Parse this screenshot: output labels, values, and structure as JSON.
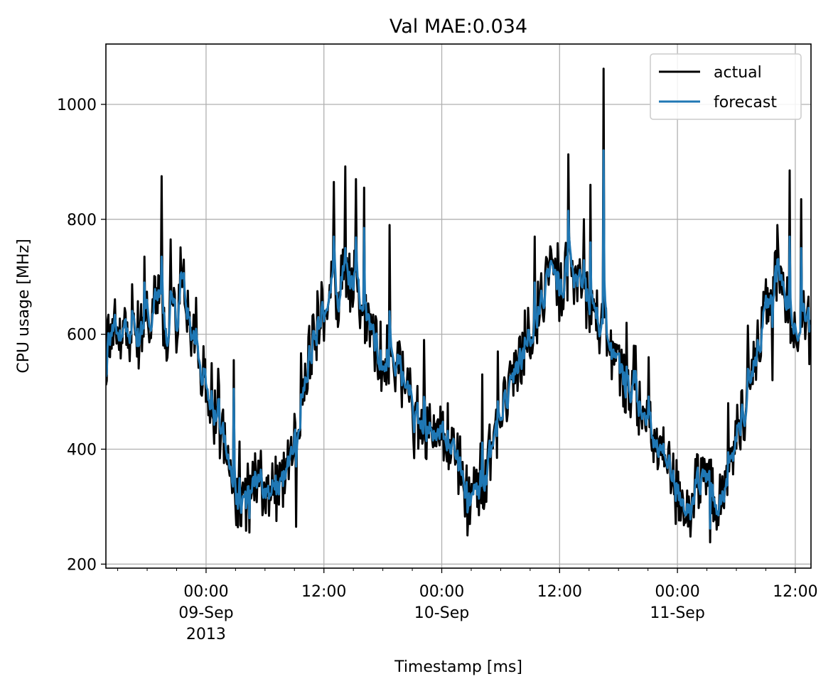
{
  "chart_data": {
    "type": "line",
    "title": "Val MAE:0.034",
    "xlabel": "Timestamp [ms]",
    "ylabel": "CPU usage [MHz]",
    "x_ticks": [
      {
        "hours": 0,
        "lines": [
          "00:00",
          "09-Sep",
          "2013"
        ]
      },
      {
        "hours": 12,
        "lines": [
          "12:00"
        ]
      },
      {
        "hours": 24,
        "lines": [
          "00:00",
          "10-Sep"
        ]
      },
      {
        "hours": 36,
        "lines": [
          "12:00"
        ]
      },
      {
        "hours": 48,
        "lines": [
          "00:00",
          "11-Sep"
        ]
      },
      {
        "hours": 60,
        "lines": [
          "12:00"
        ]
      }
    ],
    "y_ticks": [
      200,
      400,
      600,
      800,
      1000
    ],
    "ylim": [
      193,
      1105
    ],
    "x_range_hours": [
      -10.2,
      61.6
    ],
    "grid": true,
    "legend": "top-right",
    "series": [
      {
        "name": "actual",
        "color": "#000000",
        "anchors": [
          [
            -10.2,
            560
          ],
          [
            -9.5,
            640
          ],
          [
            -9,
            590
          ],
          [
            -8.5,
            620
          ],
          [
            -8,
            600
          ],
          [
            -7.5,
            640
          ],
          [
            -7,
            575
          ],
          [
            -6.5,
            610
          ],
          [
            -6,
            660
          ],
          [
            -5.5,
            620
          ],
          [
            -5,
            680
          ],
          [
            -4.5,
            640
          ],
          [
            -4,
            600
          ],
          [
            -3.5,
            660
          ],
          [
            -3,
            620
          ],
          [
            -2.5,
            720
          ],
          [
            -2,
            640
          ],
          [
            -1.5,
            600
          ],
          [
            -1,
            560
          ],
          [
            -0.5,
            530
          ],
          [
            0,
            520
          ],
          [
            0.5,
            480
          ],
          [
            1,
            450
          ],
          [
            1.5,
            430
          ],
          [
            2,
            400
          ],
          [
            2.5,
            360
          ],
          [
            3,
            320
          ],
          [
            3.5,
            290
          ],
          [
            4,
            300
          ],
          [
            4.5,
            330
          ],
          [
            5,
            350
          ],
          [
            5.5,
            330
          ],
          [
            6,
            340
          ],
          [
            6.5,
            320
          ],
          [
            7,
            350
          ],
          [
            7.5,
            330
          ],
          [
            8,
            360
          ],
          [
            8.5,
            380
          ],
          [
            9,
            420
          ],
          [
            9.5,
            460
          ],
          [
            10,
            520
          ],
          [
            10.5,
            560
          ],
          [
            11,
            590
          ],
          [
            11.5,
            610
          ],
          [
            12,
            640
          ],
          [
            12.5,
            680
          ],
          [
            13,
            700
          ],
          [
            13.5,
            660
          ],
          [
            14,
            720
          ],
          [
            14.5,
            690
          ],
          [
            15,
            700
          ],
          [
            15.5,
            680
          ],
          [
            16,
            640
          ],
          [
            16.5,
            620
          ],
          [
            17,
            600
          ],
          [
            17.5,
            560
          ],
          [
            18,
            540
          ],
          [
            18.5,
            570
          ],
          [
            19,
            550
          ],
          [
            19.5,
            560
          ],
          [
            20,
            520
          ],
          [
            20.5,
            500
          ],
          [
            21,
            480
          ],
          [
            21.5,
            460
          ],
          [
            22,
            440
          ],
          [
            22.5,
            430
          ],
          [
            23,
            420
          ],
          [
            23.5,
            410
          ],
          [
            24,
            430
          ],
          [
            24.5,
            420
          ],
          [
            25,
            400
          ],
          [
            25.5,
            380
          ],
          [
            26,
            350
          ],
          [
            26.5,
            330
          ],
          [
            27,
            320
          ],
          [
            27.5,
            310
          ],
          [
            28,
            330
          ],
          [
            28.5,
            360
          ],
          [
            29,
            400
          ],
          [
            29.5,
            430
          ],
          [
            30,
            460
          ],
          [
            30.5,
            480
          ],
          [
            31,
            500
          ],
          [
            31.5,
            540
          ],
          [
            32,
            560
          ],
          [
            32.5,
            580
          ],
          [
            33,
            600
          ],
          [
            33.5,
            620
          ],
          [
            34,
            650
          ],
          [
            34.5,
            680
          ],
          [
            35,
            700
          ],
          [
            35.5,
            690
          ],
          [
            36,
            670
          ],
          [
            36.5,
            700
          ],
          [
            37,
            720
          ],
          [
            37.5,
            690
          ],
          [
            38,
            700
          ],
          [
            38.5,
            670
          ],
          [
            39,
            660
          ],
          [
            39.5,
            640
          ],
          [
            40,
            620
          ],
          [
            40.5,
            600
          ],
          [
            41,
            580
          ],
          [
            41.5,
            560
          ],
          [
            42,
            540
          ],
          [
            42.5,
            520
          ],
          [
            43,
            510
          ],
          [
            43.5,
            500
          ],
          [
            44,
            480
          ],
          [
            44.5,
            460
          ],
          [
            45,
            440
          ],
          [
            45.5,
            420
          ],
          [
            46,
            400
          ],
          [
            46.5,
            390
          ],
          [
            47,
            370
          ],
          [
            47.5,
            350
          ],
          [
            48,
            330
          ],
          [
            48.5,
            310
          ],
          [
            49,
            300
          ],
          [
            49.5,
            320
          ],
          [
            50,
            340
          ],
          [
            50.5,
            330
          ],
          [
            51,
            350
          ],
          [
            51.5,
            330
          ],
          [
            52,
            310
          ],
          [
            52.5,
            300
          ],
          [
            53,
            330
          ],
          [
            53.5,
            380
          ],
          [
            54,
            420
          ],
          [
            54.5,
            460
          ],
          [
            55,
            480
          ],
          [
            55.5,
            520
          ],
          [
            56,
            560
          ],
          [
            56.5,
            600
          ],
          [
            57,
            640
          ],
          [
            57.5,
            680
          ],
          [
            58,
            700
          ],
          [
            58.5,
            690
          ],
          [
            59,
            660
          ],
          [
            59.5,
            640
          ],
          [
            60,
            620
          ],
          [
            60.5,
            610
          ],
          [
            61,
            640
          ],
          [
            61.6,
            620
          ]
        ],
        "spikes": [
          [
            -4.5,
            875
          ],
          [
            -3.6,
            765
          ],
          [
            2.8,
            555
          ],
          [
            13,
            865
          ],
          [
            14.2,
            892
          ],
          [
            16.1,
            855
          ],
          [
            18.7,
            790
          ],
          [
            29.7,
            570
          ],
          [
            36.9,
            913
          ],
          [
            40.5,
            1062
          ],
          [
            39.1,
            860
          ],
          [
            45.1,
            560
          ],
          [
            55.2,
            615
          ],
          [
            56.7,
            615
          ],
          [
            59.4,
            885
          ],
          [
            60.6,
            835
          ],
          [
            1.2,
            540
          ],
          [
            4.4,
            255
          ],
          [
            7.2,
            275
          ],
          [
            9.2,
            265
          ],
          [
            11.3,
            675
          ],
          [
            22.2,
            590
          ],
          [
            24.6,
            480
          ],
          [
            26.6,
            250
          ],
          [
            33.5,
            770
          ],
          [
            43.6,
            580
          ],
          [
            47.8,
            270
          ],
          [
            49.3,
            248
          ],
          [
            51.3,
            238
          ],
          [
            57.7,
            520
          ],
          [
            61.4,
            548
          ],
          [
            -6.3,
            735
          ],
          [
            15.3,
            870
          ],
          [
            21.5,
            510
          ],
          [
            28.1,
            530
          ],
          [
            38.5,
            800
          ],
          [
            42.8,
            620
          ],
          [
            53.2,
            480
          ],
          [
            58.2,
            790
          ],
          [
            0.5,
            470
          ]
        ]
      },
      {
        "name": "forecast",
        "color": "#1f77b4",
        "spikes": [
          [
            -4.5,
            735
          ],
          [
            -3.6,
            675
          ],
          [
            13,
            770
          ],
          [
            14.2,
            750
          ],
          [
            16.1,
            785
          ],
          [
            36.9,
            815
          ],
          [
            40.5,
            920
          ],
          [
            39.1,
            760
          ],
          [
            59.4,
            770
          ],
          [
            60.6,
            750
          ],
          [
            55.2,
            540
          ],
          [
            2.8,
            505
          ],
          [
            18.7,
            640
          ],
          [
            33.5,
            690
          ],
          [
            -6.3,
            690
          ],
          [
            49.3,
            278
          ],
          [
            51.3,
            262
          ],
          [
            26.6,
            290
          ],
          [
            4.4,
            280
          ],
          [
            58.2,
            730
          ]
        ]
      }
    ]
  }
}
